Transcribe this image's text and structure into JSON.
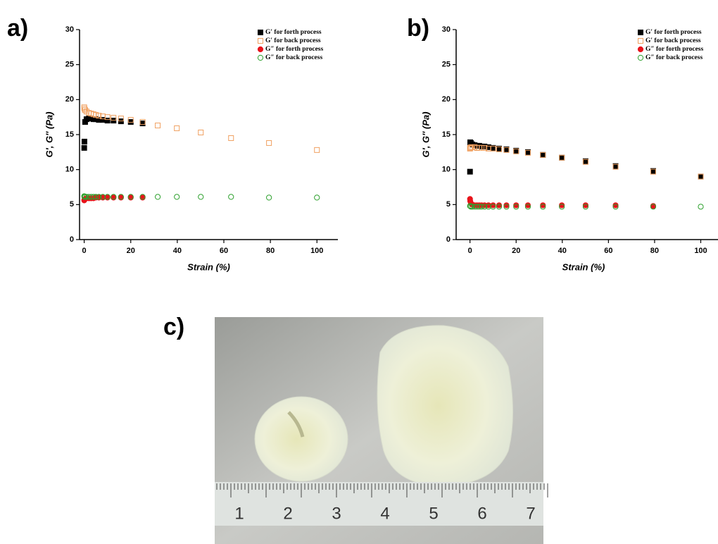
{
  "chart_data": [
    {
      "type": "scatter",
      "label": "a)",
      "xlabel": "Strain (%)",
      "ylabel": "G′, G″ (Pa)",
      "x": [
        0.01,
        0.1,
        0.4,
        1,
        2,
        3,
        4,
        5,
        6.3,
        8,
        10,
        12.6,
        15.8,
        20,
        25.1,
        31.6,
        39.8,
        50.1,
        63.1,
        79.4,
        100
      ],
      "xlim": [
        -2,
        109
      ],
      "xticks": [
        0,
        20,
        40,
        60,
        80,
        100
      ],
      "ylim": [
        0,
        30
      ],
      "yticks": [
        0,
        5,
        10,
        15,
        20,
        25,
        30
      ],
      "legend": "upper right",
      "series": [
        {
          "name": "G′ for forth process",
          "color": "#000000",
          "marker": "square",
          "filled": true,
          "values": [
            13.1,
            14.0,
            16.8,
            17.2,
            17.3,
            17.3,
            17.2,
            17.2,
            17.1,
            17.1,
            17.0,
            17.0,
            16.9,
            16.8,
            16.6,
            null,
            null,
            null,
            null,
            null,
            null
          ]
        },
        {
          "name": "G′ for back process",
          "color": "#f0a060",
          "marker": "square",
          "filled": false,
          "values": [
            18.9,
            18.7,
            18.5,
            18.3,
            18.1,
            18.0,
            17.9,
            17.8,
            17.7,
            17.6,
            17.5,
            17.4,
            17.3,
            17.1,
            16.8,
            16.3,
            15.9,
            15.3,
            14.5,
            13.8,
            12.8
          ]
        },
        {
          "name": "G″ for forth process",
          "color": "#e8141b",
          "marker": "circle",
          "filled": true,
          "values": [
            5.6,
            5.7,
            5.8,
            5.9,
            5.9,
            5.9,
            5.9,
            6.0,
            6.0,
            6.0,
            6.0,
            6.0,
            6.0,
            6.0,
            6.0,
            null,
            null,
            null,
            null,
            null,
            null
          ]
        },
        {
          "name": "G″ for back process",
          "color": "#2ca02c",
          "marker": "circle",
          "filled": false,
          "values": [
            6.2,
            6.1,
            6.1,
            6.1,
            6.1,
            6.1,
            6.1,
            6.1,
            6.1,
            6.1,
            6.1,
            6.1,
            6.1,
            6.1,
            6.1,
            6.1,
            6.1,
            6.1,
            6.1,
            6.0,
            6.0
          ]
        }
      ]
    },
    {
      "type": "scatter",
      "label": "b)",
      "xlabel": "Strain (%)",
      "ylabel": "G′, G″ (Pa)",
      "x": [
        0.01,
        0.1,
        0.4,
        1,
        2,
        3,
        4,
        5,
        6.3,
        8,
        10,
        12.6,
        15.8,
        20,
        25.1,
        31.6,
        39.8,
        50.1,
        63.1,
        79.4,
        100
      ],
      "xlim": [
        -6,
        109
      ],
      "xticks": [
        0,
        20,
        40,
        60,
        80,
        100
      ],
      "ylim": [
        0,
        30
      ],
      "yticks": [
        0,
        5,
        10,
        15,
        20,
        25,
        30
      ],
      "legend": "upper right",
      "series": [
        {
          "name": "G′ for forth process",
          "color": "#000000",
          "marker": "square",
          "filled": true,
          "values": [
            9.7,
            13.9,
            13.8,
            13.6,
            13.5,
            13.4,
            13.4,
            13.3,
            13.3,
            13.2,
            13.1,
            13.0,
            12.9,
            12.7,
            12.5,
            12.1,
            11.7,
            11.2,
            10.5,
            9.8,
            9.0
          ]
        },
        {
          "name": "G′ for back process",
          "color": "#f0a060",
          "marker": "square",
          "filled": false,
          "values": [
            13.0,
            13.1,
            13.2,
            13.2,
            13.2,
            13.1,
            13.1,
            13.1,
            13.1,
            13.0,
            13.0,
            12.9,
            12.8,
            12.6,
            12.4,
            12.1,
            11.7,
            11.1,
            10.4,
            9.7,
            9.0
          ]
        },
        {
          "name": "G″ for forth process",
          "color": "#e8141b",
          "marker": "circle",
          "filled": true,
          "values": [
            5.8,
            5.5,
            5.2,
            5.0,
            4.9,
            4.9,
            4.9,
            4.9,
            4.9,
            4.9,
            4.9,
            4.9,
            4.9,
            4.9,
            4.9,
            4.9,
            4.9,
            4.9,
            4.9,
            4.8,
            null
          ]
        },
        {
          "name": "G″ for back process",
          "color": "#2ca02c",
          "marker": "circle",
          "filled": false,
          "values": [
            4.8,
            4.8,
            4.7,
            4.7,
            4.7,
            4.7,
            4.7,
            4.7,
            4.7,
            4.7,
            4.7,
            4.7,
            4.7,
            4.7,
            4.7,
            4.7,
            4.7,
            4.7,
            4.7,
            4.7,
            4.7
          ]
        }
      ]
    }
  ],
  "photo": {
    "label": "c)",
    "ruler_labels": [
      "1",
      "2",
      "3",
      "4",
      "5",
      "6",
      "7"
    ]
  }
}
